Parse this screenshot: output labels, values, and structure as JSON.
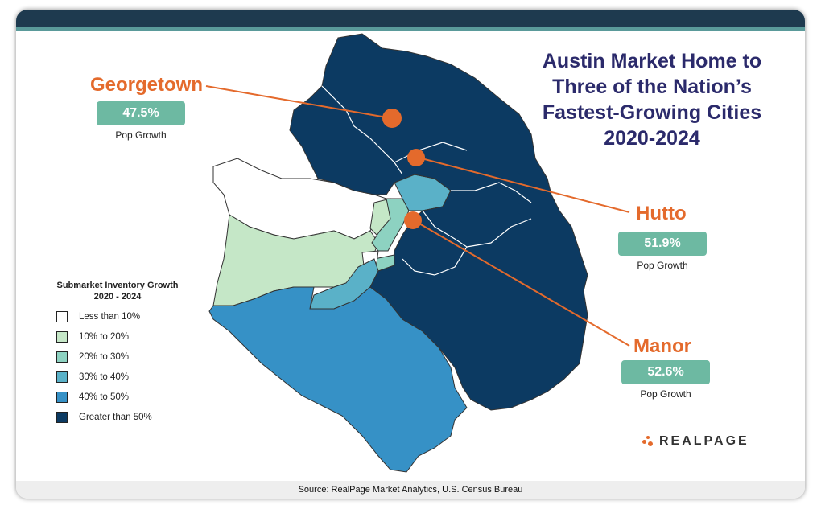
{
  "title_lines": [
    "Austin Market Home to",
    "Three of the Nation’s",
    "Fastest-Growing Cities",
    "2020-2024"
  ],
  "cities": [
    {
      "name": "Georgetown",
      "growth": "47.5%",
      "label": "Pop Growth"
    },
    {
      "name": "Hutto",
      "growth": "51.9%",
      "label": "Pop Growth"
    },
    {
      "name": "Manor",
      "growth": "52.6%",
      "label": "Pop Growth"
    }
  ],
  "legend": {
    "title_line1": "Submarket Inventory Growth",
    "title_line2": "2020 - 2024",
    "items": [
      {
        "label": "Less than 10%",
        "color": "#ffffff"
      },
      {
        "label": "10% to 20%",
        "color": "#c5e7c7"
      },
      {
        "label": "20% to 30%",
        "color": "#8dd2c1"
      },
      {
        "label": "30% to 40%",
        "color": "#5ab1c8"
      },
      {
        "label": "40% to 50%",
        "color": "#3691c6"
      },
      {
        "label": "Greater than 50%",
        "color": "#0c3a62"
      }
    ]
  },
  "logo_text": "REALPAGE",
  "source": "Source: RealPage Market Analytics, U.S. Census Bureau",
  "colors": {
    "accent_orange": "#e46a2c",
    "title": "#2b2a6b",
    "badge": "#6db9a2",
    "header": "#1e3a4f"
  }
}
